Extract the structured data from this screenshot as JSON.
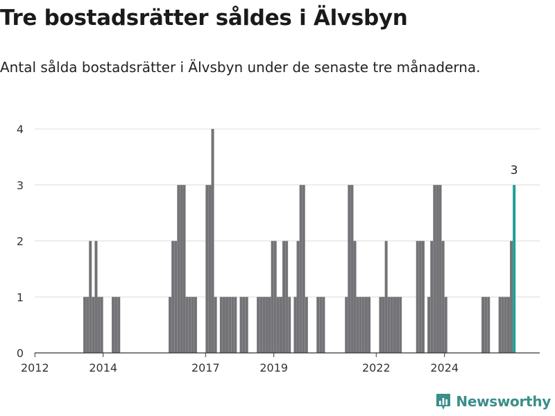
{
  "title": "Tre bostadsrätter såldes i Älvsbyn",
  "subtitle": "Antal sålda bostadsrätter i Älvsbyn under de senaste tre månaderna.",
  "brand": {
    "name": "Newsworthy",
    "icon": "newsworthy-logo-icon",
    "color": "#3a8f89"
  },
  "chart_data": {
    "type": "bar",
    "title": "Tre bostadsrätter såldes i Älvsbyn",
    "subtitle": "Antal sålda bostadsrätter i Älvsbyn under de senaste tre månaderna.",
    "xlabel": "",
    "ylabel": "",
    "ylim": [
      0,
      4
    ],
    "yticks": [
      0,
      1,
      2,
      3,
      4
    ],
    "xticks": [
      "2012",
      "2014",
      "2017",
      "2019",
      "2022",
      "2024"
    ],
    "grid": "horizontal",
    "bar_color": "#737377",
    "highlight_color": "#1f9e96",
    "highlight_label": "3",
    "start_month": "2011-12",
    "values": [
      0,
      0,
      0,
      0,
      0,
      0,
      0,
      0,
      0,
      0,
      0,
      0,
      0,
      0,
      0,
      0,
      0,
      0,
      1,
      1,
      2,
      1,
      2,
      1,
      1,
      0,
      0,
      0,
      1,
      1,
      1,
      0,
      0,
      0,
      0,
      0,
      0,
      0,
      0,
      0,
      0,
      0,
      0,
      0,
      0,
      0,
      0,
      0,
      1,
      2,
      2,
      3,
      3,
      3,
      1,
      1,
      1,
      1,
      0,
      0,
      0,
      3,
      3,
      4,
      1,
      0,
      1,
      1,
      1,
      1,
      1,
      1,
      0,
      1,
      1,
      1,
      0,
      0,
      0,
      1,
      1,
      1,
      1,
      1,
      2,
      2,
      1,
      1,
      2,
      2,
      1,
      0,
      1,
      2,
      3,
      3,
      1,
      0,
      0,
      0,
      1,
      1,
      1,
      0,
      0,
      0,
      0,
      0,
      0,
      0,
      1,
      3,
      3,
      2,
      1,
      1,
      1,
      1,
      1,
      0,
      0,
      0,
      1,
      1,
      2,
      1,
      1,
      1,
      1,
      1,
      0,
      0,
      0,
      0,
      0,
      2,
      2,
      2,
      0,
      1,
      2,
      3,
      3,
      3,
      2,
      1,
      0,
      0,
      0,
      0,
      0,
      0,
      0,
      0,
      0,
      0,
      0,
      0,
      1,
      1,
      1,
      0,
      0,
      0,
      1,
      1,
      1,
      1,
      2,
      3
    ]
  }
}
